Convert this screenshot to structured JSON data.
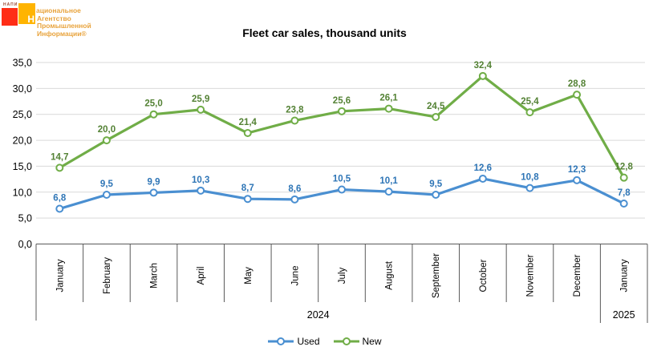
{
  "logo": {
    "badge_text": "НАПИ",
    "name_line1_initial": "Н",
    "name_line1_rest": "ациональное",
    "name_line2": "Агентство",
    "name_line3": "Промышленной",
    "name_line4": "Информации®",
    "red_square_color": "#ff2d16",
    "orange_square_color": "#ffb401",
    "text_color": "#e8a33c"
  },
  "chart_data": {
    "type": "line",
    "title": "Fleet car sales, thousand units",
    "categories": [
      "January",
      "February",
      "March",
      "April",
      "May",
      "June",
      "July",
      "August",
      "September",
      "October",
      "November",
      "December",
      "January"
    ],
    "year_groups": [
      {
        "label": "2024",
        "span": 12
      },
      {
        "label": "2025",
        "span": 1
      }
    ],
    "series": [
      {
        "name": "Used",
        "color": "#4a8fd1",
        "label_color": "#2e75b6",
        "values": [
          6.8,
          9.5,
          9.9,
          10.3,
          8.7,
          8.6,
          10.5,
          10.1,
          9.5,
          12.6,
          10.8,
          12.3,
          7.8
        ]
      },
      {
        "name": "New",
        "color": "#70ad47",
        "label_color": "#548235",
        "values": [
          14.7,
          20.0,
          25.0,
          25.9,
          21.4,
          23.8,
          25.6,
          26.1,
          24.5,
          32.4,
          25.4,
          28.8,
          12.8
        ]
      }
    ],
    "ylim": [
      0,
      35
    ],
    "ytick_step": 5,
    "decimal_separator": ",",
    "grid": true,
    "grid_color": "#d9d9d9",
    "axis_color": "#595959",
    "legend_position": "bottom"
  }
}
